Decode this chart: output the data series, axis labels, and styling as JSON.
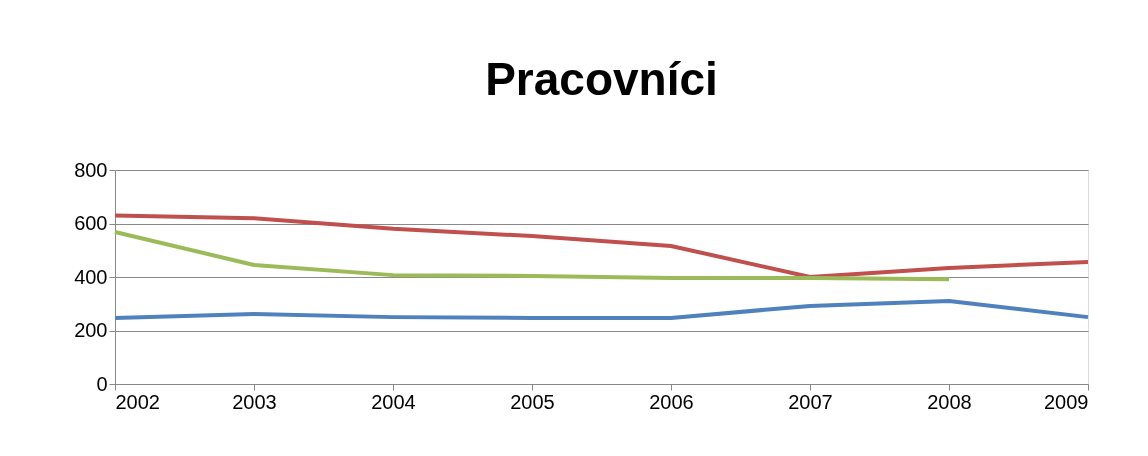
{
  "chart_data": {
    "type": "line",
    "title": "Pracovníci",
    "x": [
      2002,
      2003,
      2004,
      2005,
      2006,
      2007,
      2008,
      2009
    ],
    "series": [
      {
        "color": "#4f81bd",
        "values": [
          247,
          262,
          250,
          247,
          247,
          292,
          310,
          250
        ]
      },
      {
        "color": "#c0504d",
        "values": [
          630,
          620,
          580,
          553,
          516,
          400,
          434,
          456
        ]
      },
      {
        "color": "#9bbb59",
        "values": [
          568,
          445,
          407,
          404,
          396,
          396,
          392,
          null
        ]
      }
    ],
    "xlim": [
      2002,
      2009
    ],
    "xticks": [
      2002,
      2003,
      2004,
      2005,
      2006,
      2007,
      2008,
      2009
    ],
    "ylim": [
      0,
      800
    ],
    "yticks": [
      0,
      200,
      400,
      600,
      800
    ],
    "grid": "y"
  }
}
